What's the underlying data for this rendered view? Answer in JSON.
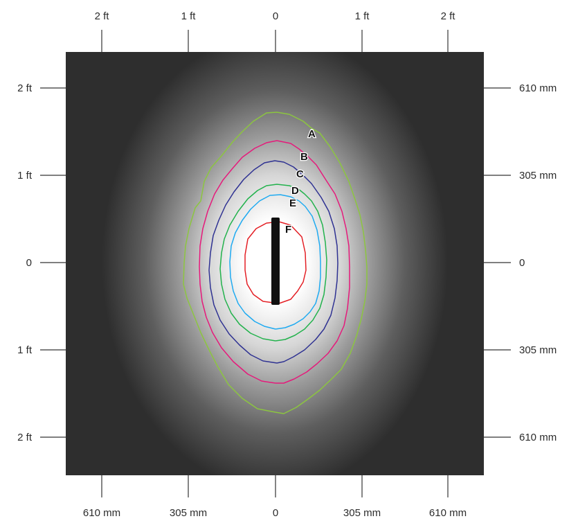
{
  "axes": {
    "top": [
      "2 ft",
      "1 ft",
      "0",
      "1 ft",
      "2 ft"
    ],
    "bottom": [
      "610 mm",
      "305 mm",
      "0",
      "305 mm",
      "610 mm"
    ],
    "left": [
      "2 ft",
      "1 ft",
      "0",
      "1 ft",
      "2 ft"
    ],
    "right": [
      "610 mm",
      "305 mm",
      "0",
      "305 mm",
      "610 mm"
    ]
  },
  "contours": [
    {
      "label": "A",
      "color": "#8cc63f"
    },
    {
      "label": "B",
      "color": "#e6197b"
    },
    {
      "label": "C",
      "color": "#2e3192"
    },
    {
      "label": "D",
      "color": "#22b24c"
    },
    {
      "label": "E",
      "color": "#1eaaf1"
    },
    {
      "label": "F",
      "color": "#e31e24"
    }
  ],
  "colors": {
    "background_dark": "#2e2e2e",
    "glow_center": "#ffffff",
    "fixture": "#111111"
  }
}
